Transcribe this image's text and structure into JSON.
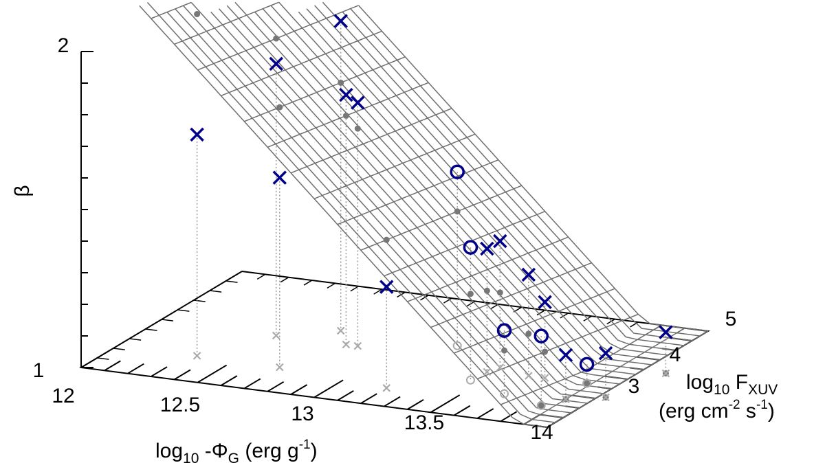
{
  "chart_data": {
    "type": "surface3d-scatter",
    "title": "",
    "zlabel": "β",
    "xlabel": {
      "prefix": "log",
      "sub": "10",
      "mid": " -Φ",
      "sub2": "G",
      "unit": " (erg g",
      "sup": "-1",
      "end": ")"
    },
    "ylabel": {
      "line1_prefix": "log",
      "line1_sub": "10",
      "line1_mid": " F",
      "line1_sub2": "XUV",
      "line2_a": "(erg cm",
      "line2_sup1": "-2",
      "line2_b": " s",
      "line2_sup2": "-1",
      "line2_c": ")"
    },
    "xlim": [
      12,
      14
    ],
    "ylim": [
      2.5,
      5
    ],
    "zlim": [
      1,
      2
    ],
    "xticks": [
      "12",
      "12.5",
      "13",
      "13.5",
      "14"
    ],
    "yticks": [
      "3",
      "4",
      "5"
    ],
    "zticks": [
      "1",
      "2"
    ],
    "surface": {
      "description": "beta = 1 + 0.72*(13.79 - x) - 0.04*(y - 4), floored at 1",
      "x_grid": [
        12.0,
        12.1,
        12.2,
        12.3,
        12.4,
        12.5,
        12.6,
        12.7,
        12.8,
        12.9,
        13.0,
        13.1,
        13.2,
        13.3,
        13.4,
        13.5,
        13.6,
        13.7,
        13.8,
        13.9,
        14.0
      ],
      "y_grid": [
        2.5,
        2.8,
        3.1,
        3.4,
        3.7,
        4.0,
        4.3,
        4.6,
        4.9,
        5.0
      ]
    },
    "series": [
      {
        "name": "",
        "marker": "x",
        "color": "#00008b",
        "points": [
          {
            "x": 12.34,
            "y": 3.07,
            "z": 1.7
          },
          {
            "x": 12.5,
            "y": 3.72,
            "z": 1.86
          },
          {
            "x": 12.7,
            "y": 3.05,
            "z": 1.6
          },
          {
            "x": 12.7,
            "y": 4.0,
            "z": 1.98
          },
          {
            "x": 12.8,
            "y": 3.72,
            "z": 1.79
          },
          {
            "x": 12.85,
            "y": 3.72,
            "z": 1.77
          },
          {
            "x": 13.2,
            "y": 2.9,
            "z": 1.32
          },
          {
            "x": 13.46,
            "y": 3.52,
            "z": 1.39
          },
          {
            "x": 13.48,
            "y": 3.65,
            "z": 1.4
          },
          {
            "x": 13.63,
            "y": 3.55,
            "z": 1.32
          },
          {
            "x": 13.7,
            "y": 3.55,
            "z": 1.24
          },
          {
            "x": 13.9,
            "y": 3.15,
            "z": 1.14
          },
          {
            "x": 14.03,
            "y": 3.3,
            "z": 1.14
          },
          {
            "x": 14.1,
            "y": 3.98,
            "z": 1.13
          }
        ]
      },
      {
        "name": "",
        "marker": "o",
        "color": "#00008b",
        "points": [
          {
            "x": 13.2,
            "y": 4.0,
            "z": 1.55
          },
          {
            "x": 13.45,
            "y": 3.3,
            "z": 1.42
          },
          {
            "x": 13.65,
            "y": 3.1,
            "z": 1.2
          },
          {
            "x": 13.85,
            "y": 2.95,
            "z": 1.22
          },
          {
            "x": 13.88,
            "y": 3.55,
            "z": 1.06
          }
        ]
      }
    ],
    "grid": false,
    "legend": "none"
  }
}
